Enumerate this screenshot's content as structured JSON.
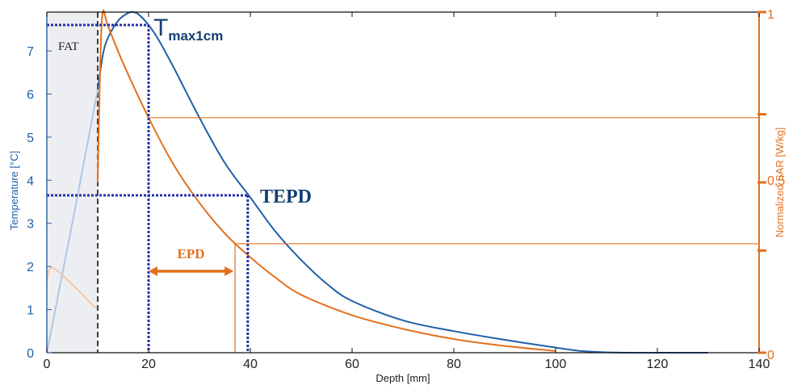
{
  "chart_data": {
    "type": "line",
    "xlabel": "Depth [mm]",
    "ylabel_left": "Temperature [°C]",
    "ylabel_right": "Normalized SAR [W/kg]",
    "xlim": [
      0,
      140
    ],
    "ylim_left": [
      0,
      7.9
    ],
    "ylim_right": [
      0,
      1
    ],
    "x_ticks": [
      0,
      20,
      40,
      60,
      80,
      100,
      120,
      140
    ],
    "x_tick_labels": [
      "0",
      "20",
      "40",
      "60",
      "80",
      "100",
      "120",
      "140"
    ],
    "y_left_ticks": [
      0,
      1,
      2,
      3,
      4,
      5,
      6,
      7
    ],
    "y_left_tick_labels": [
      "0",
      "1",
      "2",
      "3",
      "4",
      "5",
      "6",
      "7"
    ],
    "y_right_labeled_ticks": [
      0,
      0.5,
      1
    ],
    "y_right_tick_labels": [
      "0",
      "0.5",
      "1"
    ],
    "fat_region": {
      "label": "FAT",
      "x_range": [
        0,
        10
      ]
    },
    "series": [
      {
        "axis": "left",
        "color": "#1f5fa8",
        "x": [
          10,
          11,
          12,
          14,
          16,
          17,
          18,
          20,
          22,
          25,
          30,
          35,
          40,
          45,
          50,
          55,
          60,
          70,
          80,
          90,
          100,
          105,
          110,
          115,
          120,
          130
        ],
        "y": [
          6.1,
          6.9,
          7.3,
          7.7,
          7.88,
          7.9,
          7.85,
          7.6,
          7.25,
          6.6,
          5.45,
          4.4,
          3.6,
          2.8,
          2.15,
          1.6,
          1.2,
          0.75,
          0.5,
          0.3,
          0.12,
          0.04,
          0.01,
          0.0,
          0.0,
          0.0
        ]
      },
      {
        "axis": "left",
        "color": "#aec6e4",
        "x": [
          0,
          5,
          10
        ],
        "y": [
          0,
          3.0,
          6.1
        ]
      },
      {
        "axis": "right",
        "color": "#e3701e",
        "x": [
          10,
          10.5,
          11,
          12,
          15,
          20,
          25,
          30,
          35,
          40,
          45,
          50,
          60,
          70,
          80,
          90,
          100
        ],
        "y": [
          0.5,
          0.85,
          1.0,
          0.96,
          0.85,
          0.69,
          0.55,
          0.44,
          0.35,
          0.28,
          0.22,
          0.17,
          0.11,
          0.07,
          0.04,
          0.02,
          0.005
        ]
      },
      {
        "axis": "right",
        "color": "#f5c8a6",
        "x": [
          0,
          1,
          5,
          9,
          9.8
        ],
        "y": [
          0.21,
          0.25,
          0.2,
          0.14,
          0.13
        ]
      }
    ],
    "annotations": {
      "tmax_label_main": "T",
      "tmax_label_sub": "max1cm",
      "tepd_label": "TEPD",
      "epd_label": "EPD",
      "tmax_value": 7.6,
      "tmax_depth": 20,
      "tepd_value": 3.65,
      "tepd_depth": 39.5,
      "sar_at_20": 0.69,
      "sar_at_epd": 0.32,
      "epd_depth": 37,
      "epd_arrow_x": [
        20,
        37
      ]
    }
  }
}
